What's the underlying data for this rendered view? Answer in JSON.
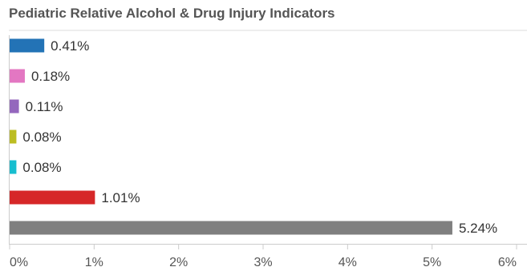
{
  "chart_data": {
    "type": "bar",
    "orientation": "horizontal",
    "title": "Pediatric Relative Alcohol & Drug Injury Indicators",
    "xlabel": "",
    "ylabel": "",
    "xlim": [
      0,
      6
    ],
    "ticks": [
      "0%",
      "1%",
      "2%",
      "3%",
      "4%",
      "5%",
      "6%"
    ],
    "grid": false,
    "legend": "none",
    "bars": [
      {
        "value": 0.41,
        "label": "0.41%",
        "color": "#2373b6"
      },
      {
        "value": 0.18,
        "label": "0.18%",
        "color": "#e377c2"
      },
      {
        "value": 0.11,
        "label": "0.11%",
        "color": "#9467bd"
      },
      {
        "value": 0.08,
        "label": "0.08%",
        "color": "#bcbd22"
      },
      {
        "value": 0.08,
        "label": "0.08%",
        "color": "#17becf"
      },
      {
        "value": 1.01,
        "label": "1.01%",
        "color": "#d62728"
      },
      {
        "value": 5.24,
        "label": "5.24%",
        "color": "#7f7f7f"
      }
    ]
  }
}
